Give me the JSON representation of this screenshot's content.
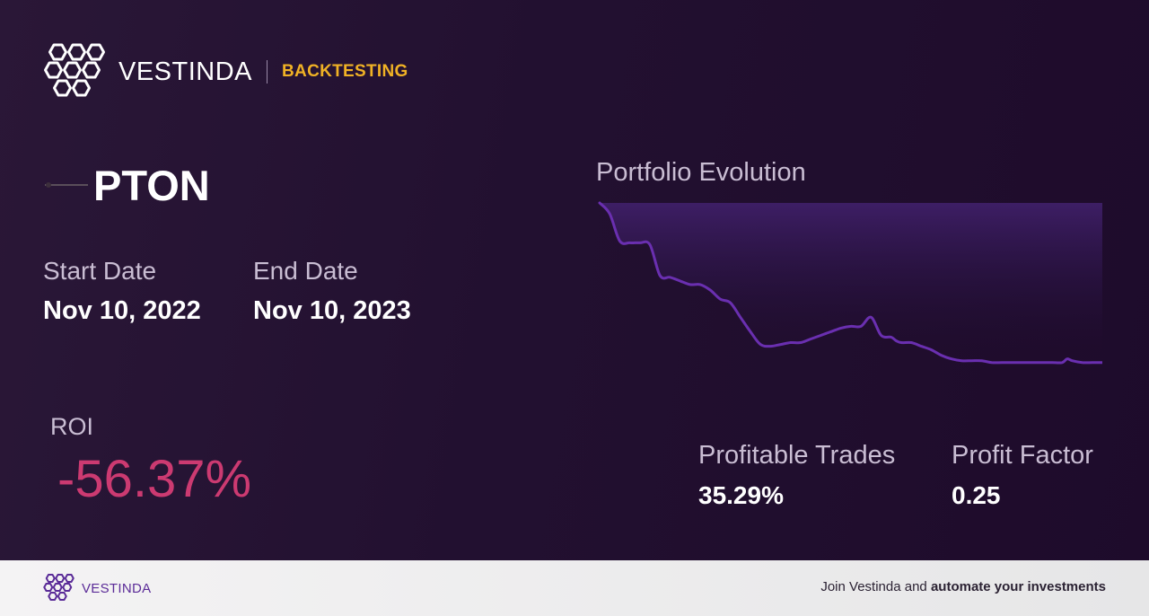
{
  "brand": {
    "name": "VESTINDA",
    "tag": "BACKTESTING",
    "accent_color": "#f0b225",
    "logo_icon": "vestinda-hexagon-logo-icon"
  },
  "asset": {
    "ticker": "PTON",
    "logo_icon": "pton-logo-icon"
  },
  "dates": {
    "start_label": "Start Date",
    "start_value": "Nov 10, 2022",
    "end_label": "End Date",
    "end_value": "Nov 10, 2023"
  },
  "roi": {
    "label": "ROI",
    "value": "-56.37%",
    "color": "#cc3a71"
  },
  "chart_data": {
    "type": "area",
    "title": "Portfolio Evolution",
    "xlabel": "",
    "ylabel": "",
    "grid": false,
    "line_color": "#6a2fb0",
    "x": [
      0,
      2,
      4,
      6,
      8,
      10,
      12,
      14,
      16,
      18,
      20,
      22,
      24,
      26,
      28,
      30,
      32,
      34,
      36,
      38,
      40,
      42,
      44,
      46,
      48,
      50,
      52,
      54,
      56,
      58,
      59,
      60,
      62,
      64,
      66,
      68,
      70,
      72,
      74,
      76,
      78,
      80,
      82,
      84,
      86,
      88,
      90,
      92,
      93,
      94,
      96,
      98,
      100
    ],
    "values": [
      100,
      94,
      79,
      78,
      78,
      77,
      60,
      59,
      57,
      55,
      55,
      52,
      47,
      45,
      37,
      29,
      22,
      21,
      22,
      23,
      23,
      25,
      27,
      29,
      31,
      32,
      32,
      37,
      27,
      26,
      24,
      23,
      23,
      21,
      19,
      16,
      14,
      13,
      13,
      13,
      12,
      12,
      12,
      12,
      12,
      12,
      12,
      12,
      14,
      13,
      12,
      12,
      12
    ],
    "ylim": [
      0,
      100
    ]
  },
  "stats": {
    "profitable_trades_label": "Profitable Trades",
    "profitable_trades_value": "35.29%",
    "profit_factor_label": "Profit Factor",
    "profit_factor_value": "0.25"
  },
  "footer": {
    "brand_name": "VESTINDA",
    "brand_color": "#5b2c98",
    "cta_prefix": "Join Vestinda and ",
    "cta_bold": "automate your investments"
  }
}
